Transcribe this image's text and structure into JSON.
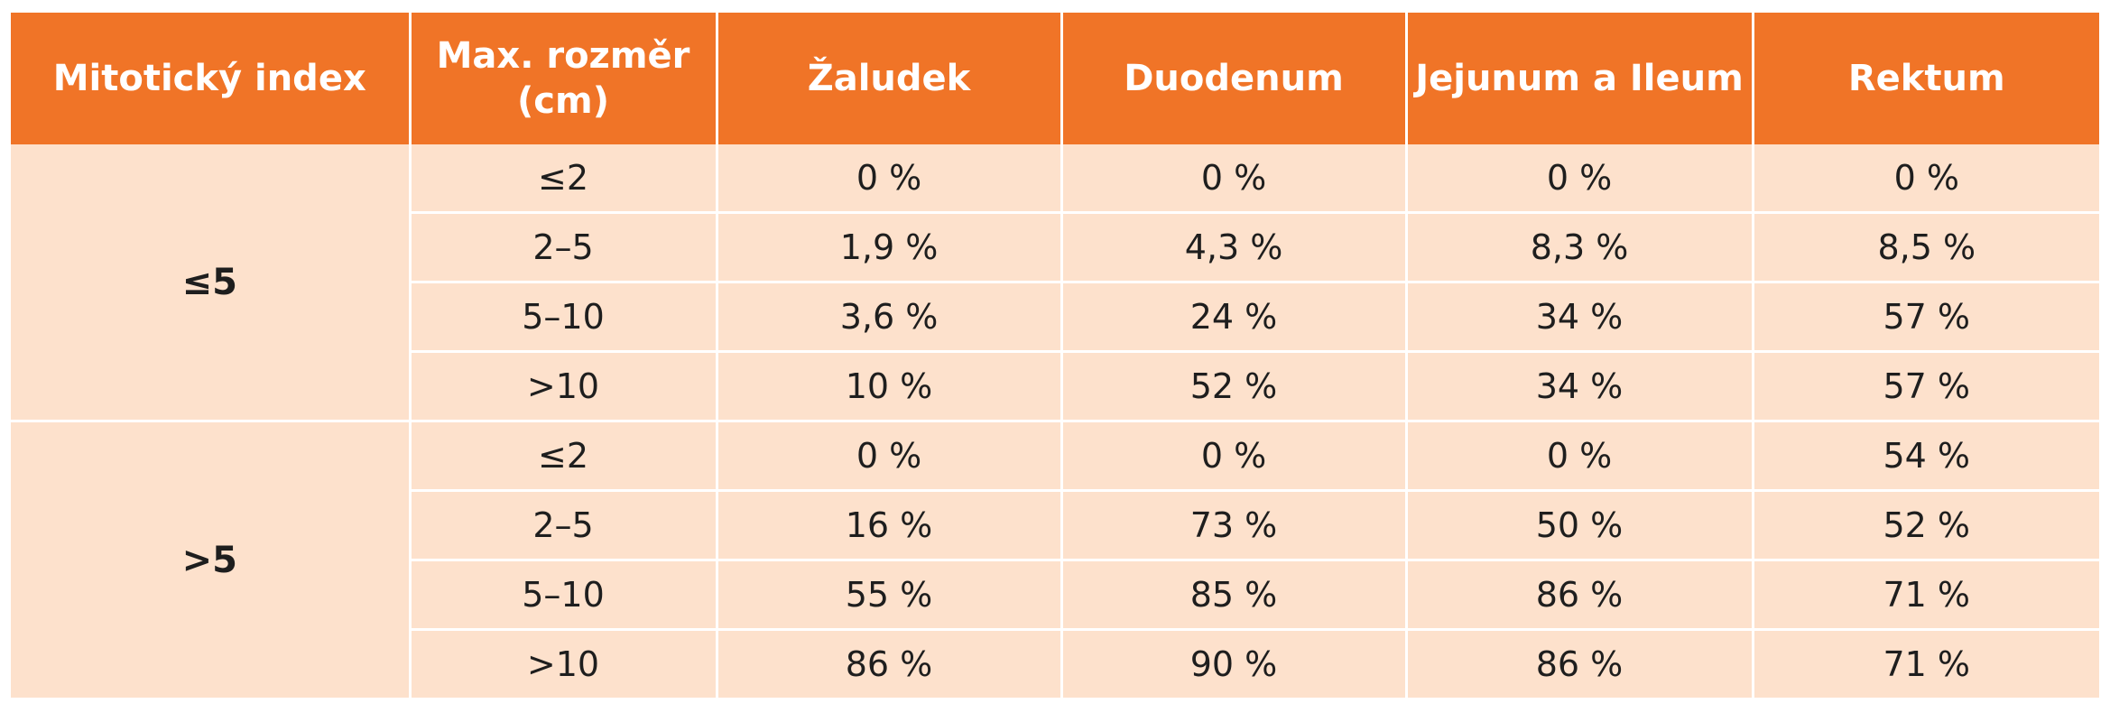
{
  "headers": [
    "Mitotický index",
    "Max. rozměr (cm)",
    "Žaludek",
    "Duodenum",
    "Jejunum a Ileum",
    "Rektum"
  ],
  "header_lines": {
    "size_line1": "Max. rozměr",
    "size_line2": "(cm)"
  },
  "groups": [
    {
      "index": "≤5",
      "rows": [
        {
          "size": "≤2",
          "zaludek": "0 %",
          "duodenum": "0 %",
          "jejunum": "0 %",
          "rektum": "0 %"
        },
        {
          "size": "2–5",
          "zaludek": "1,9 %",
          "duodenum": "4,3 %",
          "jejunum": "8,3 %",
          "rektum": "8,5 %"
        },
        {
          "size": "5–10",
          "zaludek": "3,6 %",
          "duodenum": "24 %",
          "jejunum": "34 %",
          "rektum": "57 %"
        },
        {
          "size": ">10",
          "zaludek": "10 %",
          "duodenum": "52 %",
          "jejunum": "34 %",
          "rektum": "57 %"
        }
      ]
    },
    {
      "index": ">5",
      "rows": [
        {
          "size": "≤2",
          "zaludek": "0 %",
          "duodenum": "0 %",
          "jejunum": "0 %",
          "rektum": "54 %"
        },
        {
          "size": "2–5",
          "zaludek": "16 %",
          "duodenum": "73 %",
          "jejunum": "50 %",
          "rektum": "52 %"
        },
        {
          "size": "5–10",
          "zaludek": "55 %",
          "duodenum": "85 %",
          "jejunum": "86 %",
          "rektum": "71 %"
        },
        {
          "size": ">10",
          "zaludek": "86 %",
          "duodenum": "90 %",
          "jejunum": "86 %",
          "rektum": "71 %"
        }
      ]
    }
  ],
  "colors": {
    "header": "#f07427",
    "body": "#fde1cc"
  }
}
